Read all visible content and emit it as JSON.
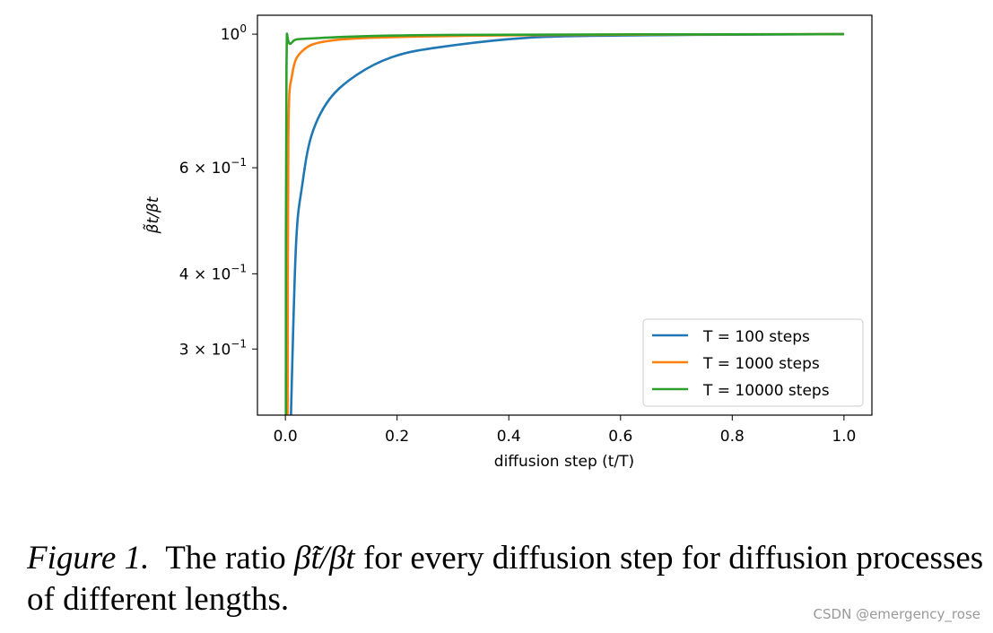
{
  "chart_data": {
    "type": "line",
    "xlabel": "diffusion step (t/T)",
    "ylabel": "β̃t/βt",
    "xlim": [
      -0.05,
      1.05
    ],
    "ylim": [
      0.233,
      1.075
    ],
    "yscale": "log",
    "grid": false,
    "legend_position": "lower-right",
    "xticks": [
      {
        "v": 0.0,
        "label": "0.0"
      },
      {
        "v": 0.2,
        "label": "0.2"
      },
      {
        "v": 0.4,
        "label": "0.4"
      },
      {
        "v": 0.6,
        "label": "0.6"
      },
      {
        "v": 0.8,
        "label": "0.8"
      },
      {
        "v": 1.0,
        "label": "1.0"
      }
    ],
    "yticks": [
      {
        "v": 1.0,
        "base": "10",
        "exp": "0"
      },
      {
        "v": 0.6,
        "mant": "6 × 10",
        "exp": "−1"
      },
      {
        "v": 0.4,
        "mant": "4 × 10",
        "exp": "−1"
      },
      {
        "v": 0.3,
        "mant": "3 × 10",
        "exp": "−1"
      }
    ],
    "series": [
      {
        "name": "T = 100 steps",
        "color": "#1f77b4",
        "x": [
          0.01,
          0.019,
          0.03,
          0.047,
          0.079,
          0.127,
          0.191,
          0.271,
          0.432,
          0.6,
          0.8,
          1.0
        ],
        "y": [
          0.233,
          0.446,
          0.56,
          0.68,
          0.78,
          0.855,
          0.916,
          0.95,
          0.986,
          0.995,
          0.998,
          1.0
        ]
      },
      {
        "name": "T = 1000 steps",
        "color": "#ff7f0e",
        "x": [
          0.004,
          0.0054,
          0.012,
          0.03,
          0.079,
          0.213,
          0.5,
          1.0
        ],
        "y": [
          0.233,
          0.68,
          0.855,
          0.937,
          0.975,
          0.99,
          0.997,
          1.0
        ]
      },
      {
        "name": "T = 10000 steps",
        "color": "#2ca02c",
        "x": [
          0.0009,
          0.002,
          0.01,
          0.058,
          0.3,
          1.0
        ],
        "y": [
          0.233,
          0.88,
          0.965,
          0.985,
          0.997,
          1.0
        ]
      }
    ]
  },
  "caption": {
    "label": "Figure 1.",
    "text_pre": "The ratio",
    "math": "β̃t/βt",
    "text_post": "for every diffusion step for diffusion processes of different lengths."
  },
  "watermark": "CSDN @emergency_rose"
}
